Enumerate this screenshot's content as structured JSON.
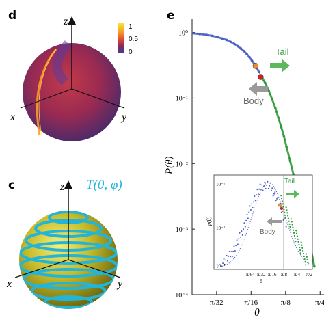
{
  "panels": {
    "d": {
      "label": "d",
      "axes": {
        "x": "x",
        "y": "y",
        "z": "z"
      },
      "colorbar": {
        "ticks": [
          "1",
          "0.5",
          "0"
        ],
        "colors": [
          "#f3e82a",
          "#f59a2c",
          "#e0452c",
          "#7f2b5c",
          "#3b3ea0"
        ]
      }
    },
    "c": {
      "label": "c",
      "axes": {
        "x": "x",
        "y": "y",
        "z": "z"
      },
      "curve_label": "T(0, φ)",
      "sphere_color": "#c7bb28",
      "stripe_color": "#22b5d8"
    }
  },
  "chart_data": {
    "type": "scatter",
    "panel_label": "e",
    "xlabel": "θ",
    "ylabel": "P(θ)",
    "xscale": "log",
    "yscale": "log",
    "xlim": [
      0.06,
      0.85
    ],
    "ylim": [
      0.0001,
      1.6
    ],
    "xticks": [
      {
        "value": 0.0982,
        "label": "π/32"
      },
      {
        "value": 0.1963,
        "label": "π/16"
      },
      {
        "value": 0.3927,
        "label": "π/8"
      },
      {
        "value": 0.7854,
        "label": "π/4"
      }
    ],
    "yticks": [
      {
        "value": 1,
        "label": "10⁰"
      },
      {
        "value": 0.1,
        "label": "10⁻¹"
      },
      {
        "value": 0.01,
        "label": "10⁻²"
      },
      {
        "value": 0.001,
        "label": "10⁻³"
      },
      {
        "value": 0.0001,
        "label": "10⁻⁴"
      }
    ],
    "series": [
      {
        "color": "#4a5fbf",
        "points": [
          [
            0.06,
            0.97
          ],
          [
            0.07,
            0.95
          ],
          [
            0.08,
            0.92
          ],
          [
            0.09,
            0.89
          ],
          [
            0.1,
            0.85
          ],
          [
            0.11,
            0.81
          ],
          [
            0.12,
            0.77
          ],
          [
            0.13,
            0.72
          ],
          [
            0.14,
            0.67
          ],
          [
            0.15,
            0.62
          ],
          [
            0.16,
            0.57
          ],
          [
            0.17,
            0.52
          ],
          [
            0.18,
            0.47
          ],
          [
            0.19,
            0.42
          ],
          [
            0.2,
            0.37
          ],
          [
            0.21,
            0.33
          ],
          [
            0.22,
            0.29
          ],
          [
            0.23,
            0.25
          ]
        ]
      },
      {
        "color": "#2f9a3a",
        "points": [
          [
            0.24,
            0.22
          ],
          [
            0.26,
            0.17
          ],
          [
            0.28,
            0.13
          ],
          [
            0.3,
            0.095
          ],
          [
            0.32,
            0.07
          ],
          [
            0.34,
            0.05
          ],
          [
            0.36,
            0.036
          ],
          [
            0.38,
            0.026
          ],
          [
            0.4,
            0.018
          ],
          [
            0.43,
            0.011
          ],
          [
            0.46,
            0.0068
          ],
          [
            0.5,
            0.0038
          ],
          [
            0.54,
            0.0022
          ],
          [
            0.58,
            0.0013
          ],
          [
            0.62,
            0.00075
          ],
          [
            0.66,
            0.00045
          ],
          [
            0.7,
            0.00027
          ]
        ]
      }
    ],
    "markers": [
      {
        "x": 0.215,
        "y": 0.31,
        "color": "#f08a2a"
      },
      {
        "x": 0.238,
        "y": 0.21,
        "color": "#d62020"
      }
    ],
    "annotations": {
      "tail": "Tail",
      "body": "Body"
    },
    "inset": {
      "xlabel": "θ",
      "ylabel": "p(θ)",
      "xticks": [
        "π/64",
        "π/32",
        "π/16",
        "π/8",
        "π/4",
        "π/2"
      ],
      "yticks": [
        "10⁻²",
        "10⁻³",
        "10⁻⁴"
      ],
      "annotations": {
        "tail": "Tail",
        "body": "Body"
      }
    }
  }
}
